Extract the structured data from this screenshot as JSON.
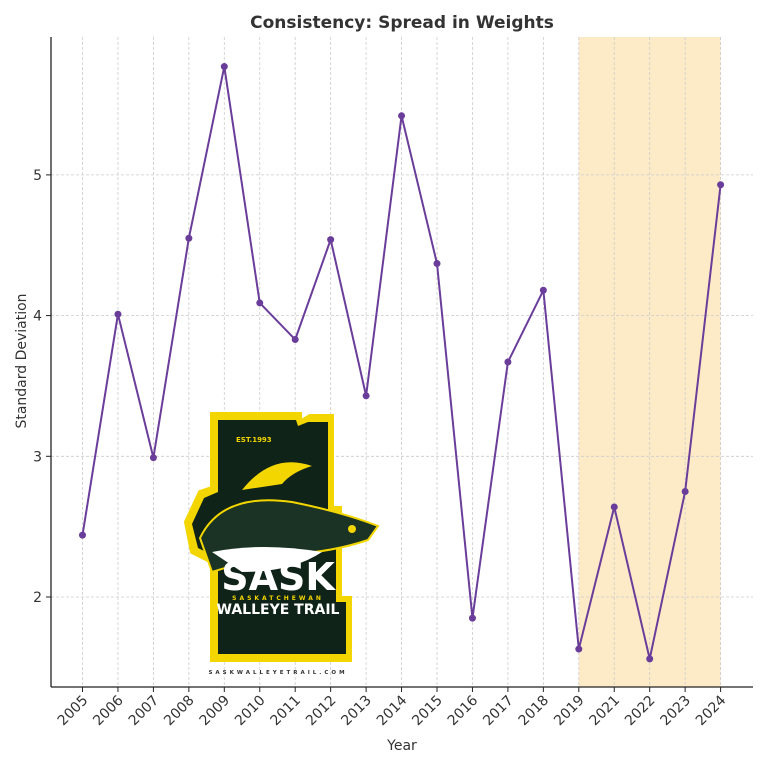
{
  "chart_data": {
    "type": "line",
    "title": "Consistency: Spread in Weights",
    "xlabel": "Year",
    "ylabel": "Standard Deviation",
    "categories": [
      "2005",
      "2006",
      "2007",
      "2008",
      "2009",
      "2010",
      "2011",
      "2012",
      "2013",
      "2014",
      "2015",
      "2016",
      "2017",
      "2018",
      "2019",
      "2021",
      "2022",
      "2023",
      "2024"
    ],
    "series": [
      {
        "name": "Standard Deviation",
        "color": "#6A3D9A",
        "values": [
          2.44,
          4.01,
          2.99,
          4.55,
          5.77,
          4.09,
          3.83,
          4.54,
          3.43,
          5.42,
          4.37,
          1.85,
          3.67,
          4.18,
          1.63,
          2.64,
          1.56,
          2.75,
          4.93
        ]
      }
    ],
    "yticks": [
      2,
      3,
      4,
      5
    ],
    "ylim": [
      1.3,
      5.98
    ],
    "grid": true,
    "highlight_span": {
      "from": "2019",
      "to": "2024",
      "color": "#FDEBC8"
    },
    "legend": null
  },
  "logo": {
    "est": "EST.1993",
    "main": "SASK",
    "sub": "SASKATCHEWAN",
    "name": "WALLEYE TRAIL",
    "url": "SASKWALLEYETRAIL.COM"
  }
}
